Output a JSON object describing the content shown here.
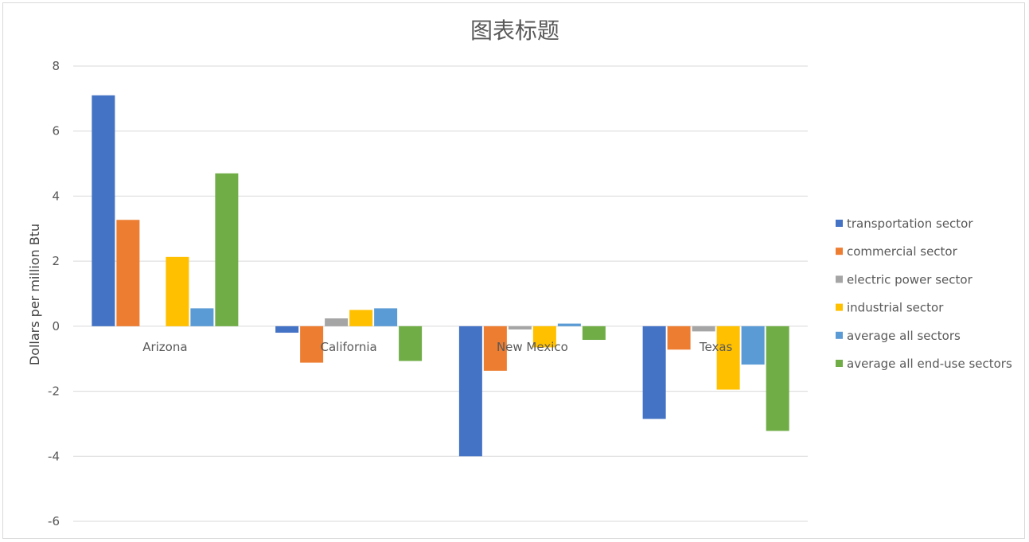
{
  "chart_data": {
    "type": "bar",
    "title": "图表标题",
    "ylabel": "Dollars per million Btu",
    "xlabel": "",
    "ylim": [
      -6,
      8
    ],
    "yticks": [
      8,
      6,
      4,
      2,
      0,
      -2,
      -4,
      -6
    ],
    "grid": true,
    "legend_position": "right",
    "categories": [
      "Arizona",
      "California",
      "New Mexico",
      "Texas"
    ],
    "series": [
      {
        "name": "transportation sector",
        "color": "#4472C4",
        "values": [
          7.1,
          -0.2,
          -4.0,
          -2.85
        ]
      },
      {
        "name": "commercial sector",
        "color": "#ED7D31",
        "values": [
          3.27,
          -1.12,
          -1.37,
          -0.72
        ]
      },
      {
        "name": "electric power sector",
        "color": "#A5A5A5",
        "values": [
          0.0,
          0.24,
          -0.1,
          -0.16
        ]
      },
      {
        "name": "industrial sector",
        "color": "#FFC000",
        "values": [
          2.13,
          0.5,
          -0.65,
          -1.95
        ]
      },
      {
        "name": "average all sectors",
        "color": "#5B9BD5",
        "values": [
          0.55,
          0.55,
          0.08,
          -1.18
        ]
      },
      {
        "name": "average all end-use sectors",
        "color": "#70AD47",
        "values": [
          4.7,
          -1.07,
          -0.42,
          -3.22
        ]
      }
    ]
  }
}
